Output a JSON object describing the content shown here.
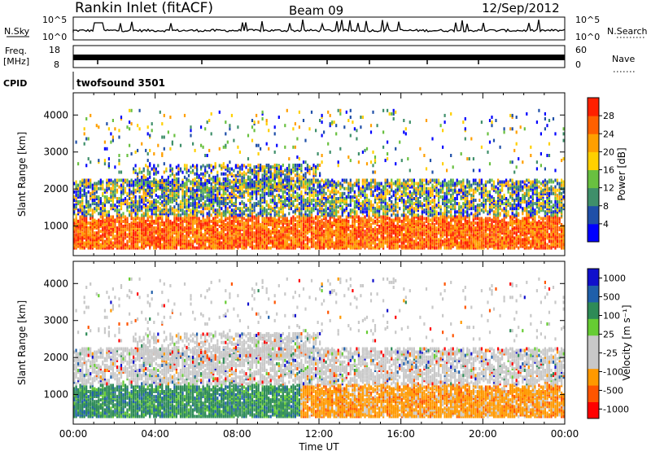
{
  "header": {
    "title": "Rankin Inlet (fitACF)",
    "beam": "Beam 09",
    "date": "12/Sep/2012"
  },
  "top_panels": {
    "nsky_label": "N.Sky",
    "nsky_ticks": [
      "10^5",
      "10^0"
    ],
    "nsearch_label": "N.Search",
    "nsearch_ticks": [
      "10^5",
      "10^0"
    ],
    "freq_label": "Freq.",
    "freq_unit": "[MHz]",
    "freq_ticks": [
      "18",
      "8"
    ],
    "nave_label": "Nave",
    "nave_ticks": [
      "60",
      "0"
    ],
    "cpid_label": "CPID",
    "cpid_value": "twofsound 3501"
  },
  "colors": {
    "power_scale": [
      "#0000ff",
      "#1f4fa8",
      "#3f8f6a",
      "#69c040",
      "#ffd000",
      "#ff9f00",
      "#ff6000",
      "#ff2000"
    ],
    "velocity_scale": [
      "#ff0000",
      "#ff5500",
      "#ff9900",
      "#c8c8c8",
      "#c8c8c8",
      "#66cc33",
      "#2e8b57",
      "#1f5faa",
      "#1010cc"
    ]
  },
  "chart_data": [
    {
      "type": "heatmap",
      "title": "",
      "xlabel": "Time UT",
      "ylabel": "Slant Range [km]",
      "x_ticks": [
        "00:00",
        "04:00",
        "08:00",
        "12:00",
        "16:00",
        "20:00",
        "00:00"
      ],
      "y_ticks": [
        "1000",
        "2000",
        "3000",
        "4000"
      ],
      "xlim": [
        0,
        24
      ],
      "ylim": [
        200,
        4600
      ],
      "colorbar": {
        "label": "Power [dB]",
        "ticks": [
          "4",
          "8",
          "12",
          "16",
          "20",
          "24",
          "28"
        ],
        "range": [
          0,
          30
        ]
      }
    },
    {
      "type": "heatmap",
      "title": "",
      "xlabel": "Time UT",
      "ylabel": "Slant Range [km]",
      "x_ticks": [
        "00:00",
        "04:00",
        "08:00",
        "12:00",
        "16:00",
        "20:00",
        "00:00"
      ],
      "y_ticks": [
        "1000",
        "2000",
        "3000",
        "4000"
      ],
      "xlim": [
        0,
        24
      ],
      "ylim": [
        200,
        4600
      ],
      "colorbar": {
        "label": "Velocity [m s⁻¹]",
        "ticks": [
          "1000",
          "500",
          "100",
          "25",
          "-25",
          "-100",
          "-500",
          "-1000"
        ],
        "range": [
          -1000,
          1000
        ]
      }
    }
  ]
}
